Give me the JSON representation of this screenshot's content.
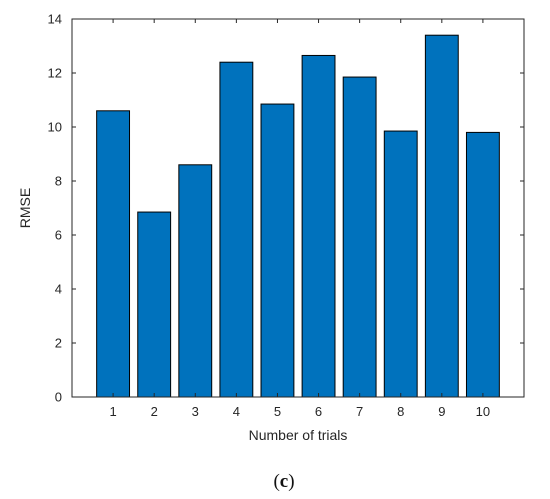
{
  "chart_data": {
    "type": "bar",
    "categories": [
      "1",
      "2",
      "3",
      "4",
      "5",
      "6",
      "7",
      "8",
      "9",
      "10"
    ],
    "values": [
      10.6,
      6.85,
      8.6,
      12.4,
      10.85,
      12.65,
      11.85,
      9.85,
      13.4,
      9.8
    ],
    "title": "",
    "xlabel": "Number of trials",
    "ylabel": "RMSE",
    "ylim": [
      0,
      14
    ],
    "yticks": [
      "0",
      "2",
      "4",
      "6",
      "8",
      "10",
      "12",
      "14"
    ],
    "bar_color": "#0072BD",
    "bar_edge_color": "#000000",
    "grid": false,
    "legend": "none"
  },
  "panel_label": {
    "open": "(",
    "letter": "c",
    "close": ")"
  }
}
